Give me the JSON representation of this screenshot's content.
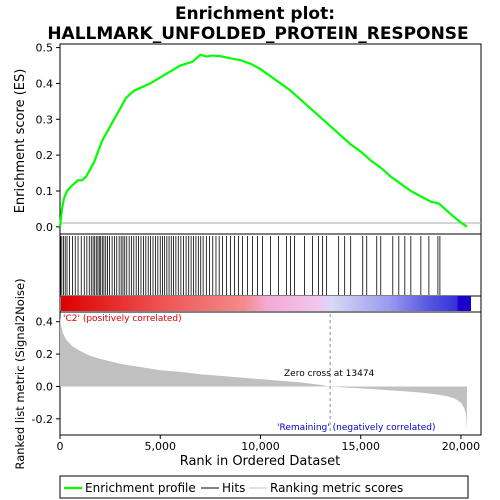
{
  "chart_data": {
    "type": "line",
    "title": "Enrichment plot:",
    "subtitle": "HALLMARK_UNFOLDED_PROTEIN_RESPONSE",
    "panels": {
      "es": {
        "ylabel": "Enrichment score (ES)",
        "ylim": [
          -0.02,
          0.51
        ],
        "yticks": [
          "0.0",
          "0.1",
          "0.2",
          "0.3",
          "0.4",
          "0.5"
        ],
        "series": {
          "name": "Enrichment profile",
          "color": "#00ff00",
          "x": [
            0,
            100,
            200,
            350,
            500,
            700,
            900,
            1100,
            1300,
            1500,
            1700,
            1900,
            2100,
            2300,
            2500,
            2700,
            2900,
            3100,
            3300,
            3500,
            3700,
            3900,
            4100,
            4300,
            4500,
            4800,
            5100,
            5400,
            5700,
            6000,
            6300,
            6600,
            6800,
            7000,
            7300,
            7600,
            8000,
            8500,
            9000,
            9500,
            10000,
            10500,
            11000,
            11500,
            12000,
            12500,
            13000,
            13500,
            14000,
            14500,
            15000,
            15500,
            16000,
            16500,
            17000,
            17500,
            18000,
            18500,
            18900,
            19200,
            19600,
            20000,
            20300
          ],
          "y": [
            0.0,
            0.05,
            0.08,
            0.1,
            0.11,
            0.12,
            0.13,
            0.13,
            0.14,
            0.16,
            0.18,
            0.21,
            0.24,
            0.26,
            0.28,
            0.3,
            0.32,
            0.34,
            0.36,
            0.37,
            0.38,
            0.385,
            0.39,
            0.395,
            0.4,
            0.41,
            0.42,
            0.43,
            0.44,
            0.45,
            0.455,
            0.46,
            0.47,
            0.48,
            0.475,
            0.478,
            0.476,
            0.47,
            0.465,
            0.455,
            0.44,
            0.42,
            0.4,
            0.38,
            0.355,
            0.33,
            0.305,
            0.28,
            0.255,
            0.23,
            0.21,
            0.185,
            0.165,
            0.14,
            0.12,
            0.1,
            0.085,
            0.07,
            0.065,
            0.05,
            0.03,
            0.012,
            0.0
          ]
        }
      },
      "hits": {
        "positions": [
          30,
          90,
          170,
          260,
          350,
          470,
          620,
          760,
          900,
          1060,
          1210,
          1340,
          1460,
          1560,
          1650,
          1730,
          1810,
          1890,
          1960,
          2030,
          2110,
          2190,
          2280,
          2370,
          2470,
          2600,
          2720,
          2830,
          2950,
          3050,
          3140,
          3230,
          3330,
          3450,
          3560,
          3680,
          3800,
          3920,
          4040,
          4160,
          4280,
          4400,
          4520,
          4640,
          4760,
          4880,
          5000,
          5110,
          5220,
          5330,
          5440,
          5550,
          5660,
          5780,
          5900,
          6030,
          6160,
          6290,
          6420,
          6540,
          6660,
          6780,
          6900,
          7020,
          7140,
          7300,
          7460,
          7620,
          7780,
          7940,
          8100,
          8300,
          8500,
          8700,
          8900,
          9100,
          9350,
          9600,
          9850,
          10100,
          10500,
          10900,
          11300,
          11500,
          11700,
          12200,
          12600,
          12900,
          13100,
          13300,
          13900,
          14200,
          14500,
          15100,
          15300,
          15800,
          16000,
          16600,
          16900,
          17200,
          17500,
          18000,
          18400,
          18850,
          18950
        ]
      },
      "rank_bar": {
        "labels": {
          "positive": "'C2' (positively correlated)",
          "negative": "'Remaining' (negatively correlated)",
          "zero_cross": "Zero cross at 13474"
        },
        "colors": {
          "positive_label": "#dd0000",
          "negative_label": "#0000cc"
        }
      },
      "metric": {
        "ylabel": "Ranked list metric (Signal2Noise)",
        "xlabel": "Rank in Ordered Dataset",
        "ylim": [
          -0.3,
          0.46
        ],
        "yticks": [
          "-0.2",
          "0.0",
          "0.2",
          "0.4"
        ],
        "xticks": [
          "0",
          "5,000",
          "10,000",
          "15,000",
          "20,000"
        ],
        "xlim": [
          0,
          21000
        ],
        "zero_cross": 13474,
        "series": {
          "x": [
            0,
            50,
            150,
            300,
            600,
            1000,
            1500,
            2000,
            3000,
            4000,
            5000,
            6000,
            7000,
            8000,
            9000,
            10000,
            11000,
            12000,
            13000,
            13474,
            14000,
            15000,
            16000,
            17000,
            18000,
            18800,
            19300,
            19700,
            20000,
            20150,
            20250,
            20300
          ],
          "y": [
            0.43,
            0.38,
            0.33,
            0.29,
            0.25,
            0.22,
            0.19,
            0.17,
            0.14,
            0.12,
            0.1,
            0.09,
            0.075,
            0.065,
            0.055,
            0.045,
            0.035,
            0.025,
            0.01,
            0.0,
            -0.005,
            -0.012,
            -0.02,
            -0.028,
            -0.038,
            -0.05,
            -0.06,
            -0.075,
            -0.1,
            -0.13,
            -0.17,
            -0.27
          ]
        }
      }
    },
    "legend": {
      "placement": "bottom",
      "entries": [
        {
          "name": "Enrichment profile",
          "color": "#00ff00"
        },
        {
          "name": "Hits",
          "color": "#000000"
        },
        {
          "name": "Ranking metric scores",
          "color": "#c0c0c0"
        }
      ]
    }
  }
}
